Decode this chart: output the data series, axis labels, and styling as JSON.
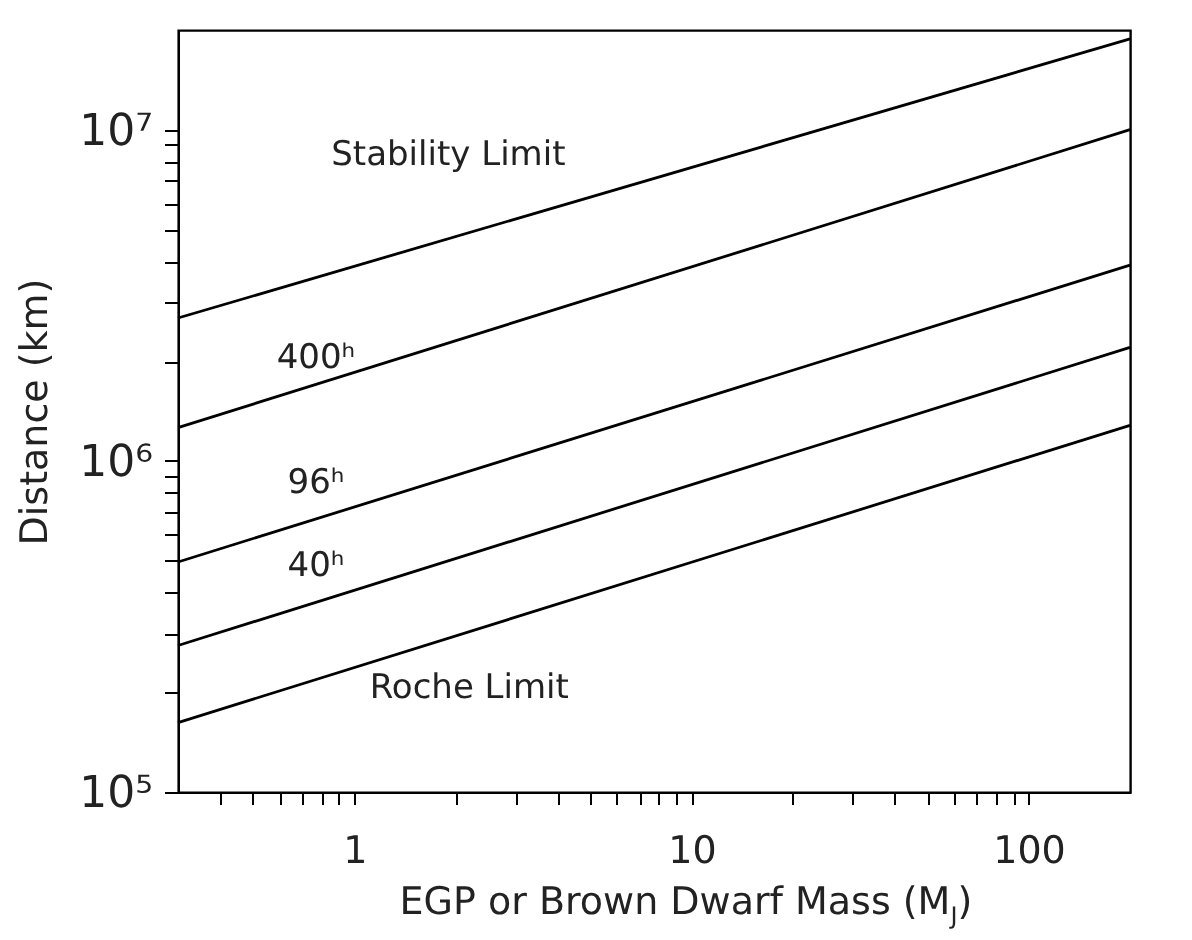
{
  "chart_data": {
    "type": "line",
    "xlabel": "EGP or Brown Dwarf Mass (M$_{J}$)",
    "ylabel": "Distance (km)",
    "log": "xy",
    "grid": false,
    "legend": false,
    "marker": "none",
    "line_style": "solid",
    "xlim": [
      0.3,
      200
    ],
    "ylim": [
      100000,
      20000000
    ],
    "xticks": [
      {
        "value": 0.4,
        "label": null
      },
      {
        "value": 0.5,
        "label": null
      },
      {
        "value": 0.6,
        "label": null
      },
      {
        "value": 0.7,
        "label": null
      },
      {
        "value": 0.8,
        "label": null
      },
      {
        "value": 0.9,
        "label": null
      },
      1,
      {
        "value": 2,
        "label": null
      },
      {
        "value": 3,
        "label": null
      },
      {
        "value": 4,
        "label": null
      },
      {
        "value": 5,
        "label": null
      },
      {
        "value": 6,
        "label": null
      },
      {
        "value": 7,
        "label": null
      },
      {
        "value": 8,
        "label": null
      },
      {
        "value": 9,
        "label": null
      },
      10,
      {
        "value": 20,
        "label": null
      },
      {
        "value": 30,
        "label": null
      },
      {
        "value": 40,
        "label": null
      },
      {
        "value": 50,
        "label": null
      },
      {
        "value": 60,
        "label": null
      },
      {
        "value": 70,
        "label": null
      },
      {
        "value": 80,
        "label": null
      },
      {
        "value": 90,
        "label": null
      },
      100
    ],
    "yticks": [
      {
        "value": 100000,
        "label": "10⁵"
      },
      {
        "value": 200000,
        "label": null
      },
      {
        "value": 300000,
        "label": null
      },
      {
        "value": 400000,
        "label": null
      },
      {
        "value": 500000,
        "label": null
      },
      {
        "value": 600000,
        "label": null
      },
      {
        "value": 700000,
        "label": null
      },
      {
        "value": 800000,
        "label": null
      },
      {
        "value": 900000,
        "label": null
      },
      {
        "value": 1000000,
        "label": "10⁶"
      },
      {
        "value": 2000000,
        "label": null
      },
      {
        "value": 3000000,
        "label": null
      },
      {
        "value": 4000000,
        "label": null
      },
      {
        "value": 5000000,
        "label": null
      },
      {
        "value": 6000000,
        "label": null
      },
      {
        "value": 7000000,
        "label": null
      },
      {
        "value": 8000000,
        "label": null
      },
      {
        "value": 9000000,
        "label": null
      },
      {
        "value": 10000000,
        "label": "10⁷"
      }
    ],
    "x": [
      0.3,
      200
    ],
    "series": [
      {
        "name": "Stability Limit",
        "color": "#000000",
        "values": [
          2700000,
          18800000
        ]
      },
      {
        "name": "400ʰ",
        "color": "#000000",
        "values": [
          1260000,
          10000000
        ]
      },
      {
        "name": "96ʰ",
        "color": "#000000",
        "values": [
          495000,
          3900000
        ]
      },
      {
        "name": "40ʰ",
        "color": "#000000",
        "values": [
          277000,
          2200000
        ]
      },
      {
        "name": "Roche Limit",
        "color": "#000000",
        "values": [
          162000,
          1280000
        ]
      }
    ]
  }
}
